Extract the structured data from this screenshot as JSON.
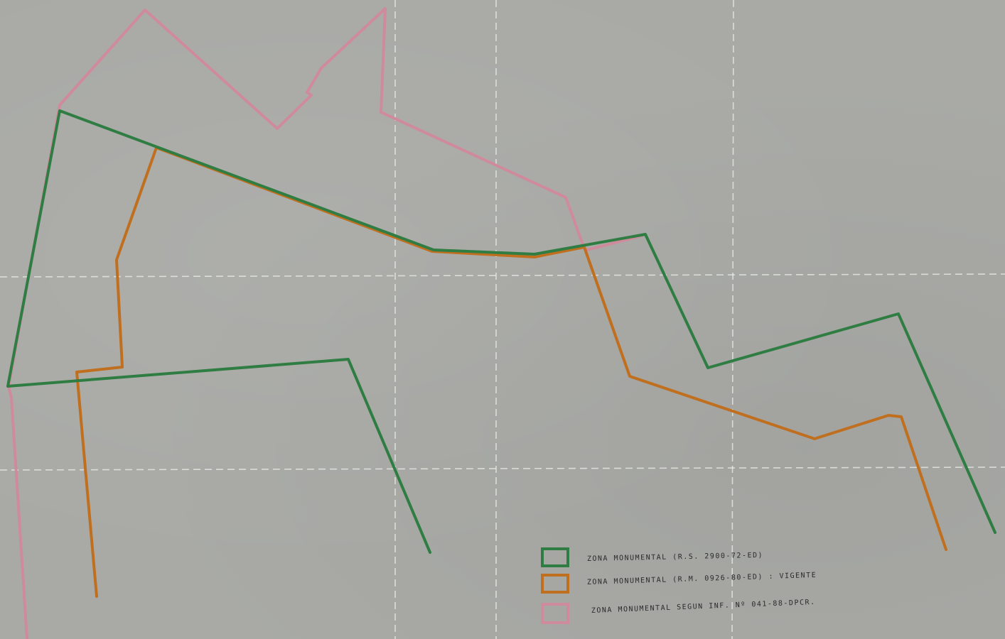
{
  "map": {
    "colors": {
      "background": "#a9aaa6",
      "green": "#2f7d43",
      "orange": "#c06f1f",
      "pink": "#cf8a9c"
    },
    "legend": [
      {
        "label": "ZONA MONUMENTAL (R.S. 2900-72-ED)",
        "color": "green"
      },
      {
        "label": "ZONA MONUMENTAL (R.M. 0926-80-ED) : VIGENTE",
        "color": "orange"
      },
      {
        "label": "ZONA MONUMENTAL SEGUN INF. Nº 041-88-DPCR.",
        "color": "pink"
      }
    ]
  }
}
